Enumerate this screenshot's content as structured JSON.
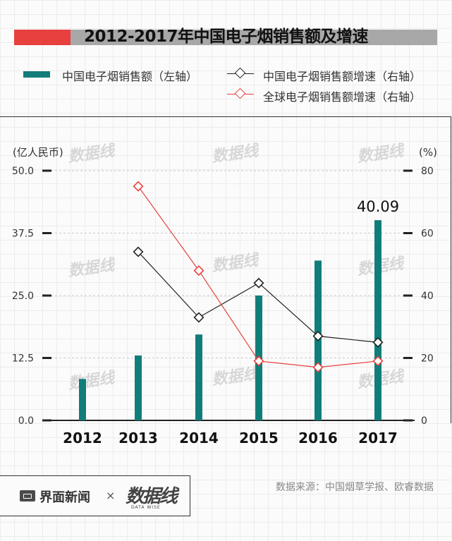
{
  "title": "2012-2017年中国电子烟销售额及增速",
  "legend": {
    "bar": "中国电子烟销售额（左轴）",
    "china_growth": "中国电子烟销售额增速（右轴）",
    "global_growth": "全球电子烟销售额增速（右轴）"
  },
  "axis_units": {
    "left": "(亿人民币)",
    "right": "(%)"
  },
  "colors": {
    "bar": "#117d7a",
    "china": "#222222",
    "global": "#e8403f",
    "title_red": "#e8403f",
    "title_gray": "#a8a8a8"
  },
  "chart_data": {
    "type": "bar",
    "title": "2012-2017年中国电子烟销售额及增速",
    "categories": [
      "2012",
      "2013",
      "2014",
      "2015",
      "2016",
      "2017"
    ],
    "series": [
      {
        "name": "中国电子烟销售额（左轴）",
        "type": "bar",
        "axis": "left",
        "values": [
          8.3,
          13.0,
          17.2,
          25.0,
          32.0,
          40.09
        ]
      },
      {
        "name": "中国电子烟销售额增速（右轴）",
        "type": "line",
        "axis": "right",
        "values": [
          null,
          54,
          33,
          44,
          27,
          25
        ]
      },
      {
        "name": "全球电子烟销售额增速（右轴）",
        "type": "line",
        "axis": "right",
        "values": [
          null,
          75,
          48,
          19,
          17,
          19
        ]
      }
    ],
    "left_ticks": [
      "0.0",
      "12.5",
      "25.0",
      "37.5",
      "50.0"
    ],
    "right_ticks": [
      "0",
      "20",
      "40",
      "60",
      "80"
    ],
    "ylim_left": [
      0,
      50
    ],
    "ylim_right": [
      0,
      80
    ],
    "data_labels": [
      {
        "category": "2017",
        "text": "40.09"
      }
    ]
  },
  "footer": {
    "brand": "界面新闻",
    "separator": "×",
    "partner": "数据线",
    "partner_sub": "DATA WISE",
    "source": "数据来源：中国烟草学报、欧睿数据"
  },
  "watermark": {
    "text": "数据线",
    "sub": "DATA WISE"
  }
}
